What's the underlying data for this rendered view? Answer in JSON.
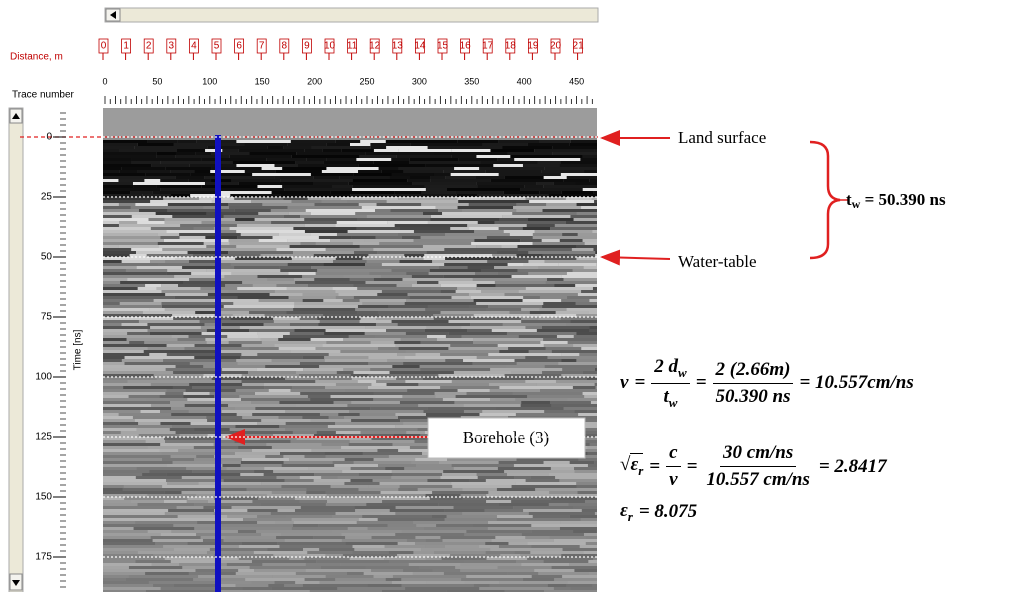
{
  "axes": {
    "distance": {
      "label": "Distance, m",
      "ticks": [
        "0",
        "1",
        "2",
        "3",
        "4",
        "5",
        "6",
        "7",
        "8",
        "9",
        "10",
        "11",
        "12",
        "13",
        "14",
        "15",
        "16",
        "17",
        "18",
        "19",
        "20",
        "21",
        "2"
      ]
    },
    "trace": {
      "label": "Trace number",
      "ticks": [
        "0",
        "50",
        "100",
        "150",
        "200",
        "250",
        "300",
        "350",
        "400",
        "450"
      ]
    },
    "time": {
      "label": "Time [ns]",
      "ticks": [
        "0",
        "25",
        "50",
        "75",
        "100",
        "125",
        "150",
        "175"
      ]
    }
  },
  "annotations": {
    "land_surface": "Land surface",
    "water_table": "Water-table",
    "travel_time": {
      "symbol": "t",
      "sub": "w",
      "rest": " = 50.390 ns"
    },
    "borehole": "Borehole (3)"
  },
  "equations": {
    "velocity": {
      "lhs": "v",
      "eq1": "=",
      "frac1": {
        "num": "2 d",
        "num_sub": "w",
        "den": "t",
        "den_sub": "w"
      },
      "eq2": "=",
      "frac2": {
        "num": "2 (2.66m)",
        "den": "50.390 ns"
      },
      "result": "= 10.557cm/ns"
    },
    "permittivity_root": {
      "root": "√",
      "symbol": "ε",
      "sub": "r",
      "eq1": "=",
      "frac1": {
        "num": "c",
        "den": "v"
      },
      "eq2": "=",
      "frac2": {
        "num": "30 cm/ns",
        "den": "10.557 cm/ns"
      },
      "result": "= 2.8417"
    },
    "permittivity": {
      "symbol": "ε",
      "sub": "r",
      "result": "= 8.075"
    }
  }
}
